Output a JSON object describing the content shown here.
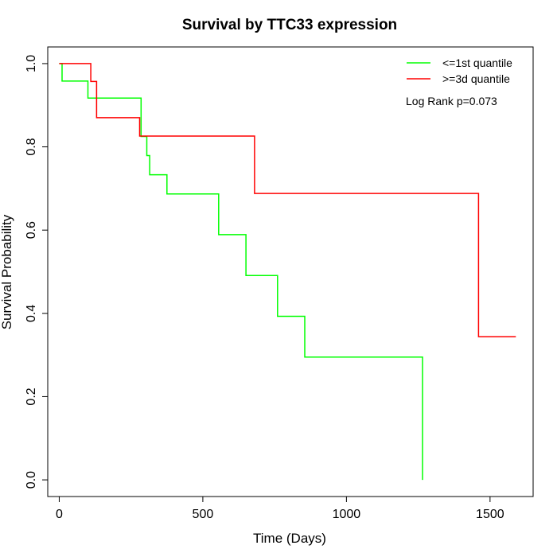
{
  "chart_data": {
    "type": "line",
    "title": "Survival by TTC33 expression",
    "xlabel": "Time (Days)",
    "ylabel": "Survival Probability",
    "xlim": [
      -40,
      1650
    ],
    "ylim": [
      -0.04,
      1.04
    ],
    "x_ticks": [
      0,
      500,
      1000,
      1500
    ],
    "y_ticks": [
      0.0,
      0.2,
      0.4,
      0.6,
      0.8,
      1.0
    ],
    "x_tick_labels": [
      "0",
      "500",
      "1000",
      "1500"
    ],
    "y_tick_labels": [
      "0.0",
      "0.2",
      "0.4",
      "0.6",
      "0.8",
      "1.0"
    ],
    "grid": false,
    "legend_position": "top-right",
    "annotation": "Log Rank p=0.073",
    "series": [
      {
        "name": "<=1st quantile",
        "color": "#00ff00",
        "step": true,
        "x": [
          0,
          10,
          100,
          245,
          285,
          305,
          315,
          375,
          555,
          650,
          760,
          855,
          1265,
          1265
        ],
        "y": [
          1.0,
          0.958,
          0.917,
          0.917,
          0.825,
          0.779,
          0.733,
          0.687,
          0.589,
          0.491,
          0.393,
          0.295,
          0.295,
          0.0
        ]
      },
      {
        "name": ">=3d quantile",
        "color": "#ff0000",
        "step": true,
        "x": [
          0,
          110,
          130,
          280,
          680,
          1460,
          1590
        ],
        "y": [
          1.0,
          0.957,
          0.87,
          0.826,
          0.688,
          0.344,
          0.344
        ]
      }
    ]
  }
}
